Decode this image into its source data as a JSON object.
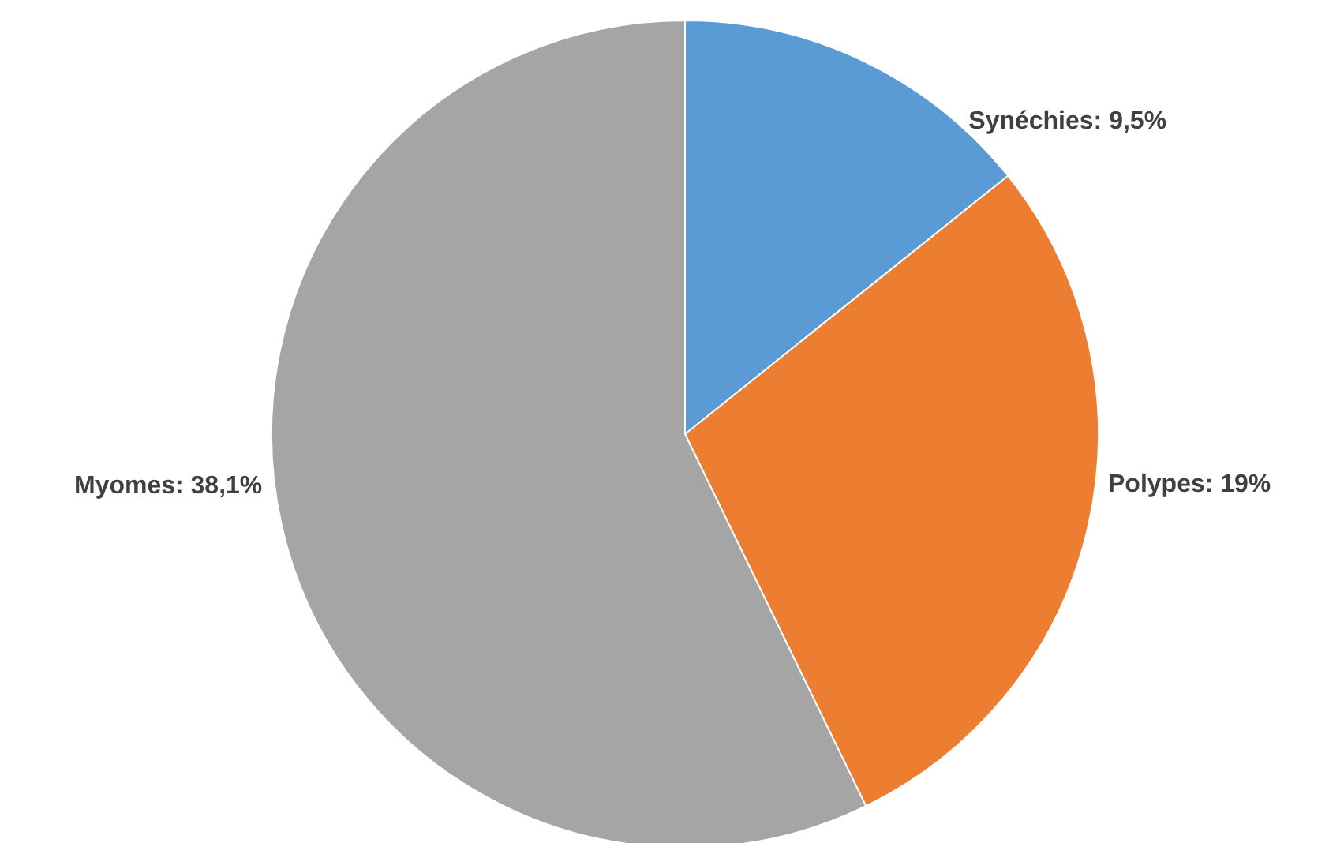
{
  "chart_data": {
    "type": "pie",
    "categories": [
      "Synéchies",
      "Polypes",
      "Myomes"
    ],
    "values": [
      9.5,
      19,
      38.1
    ],
    "value_labels": [
      "9,5%",
      "19%",
      "38,1%"
    ],
    "colors": [
      "#5b9bd5",
      "#ed7d31",
      "#a5a5a5"
    ]
  }
}
